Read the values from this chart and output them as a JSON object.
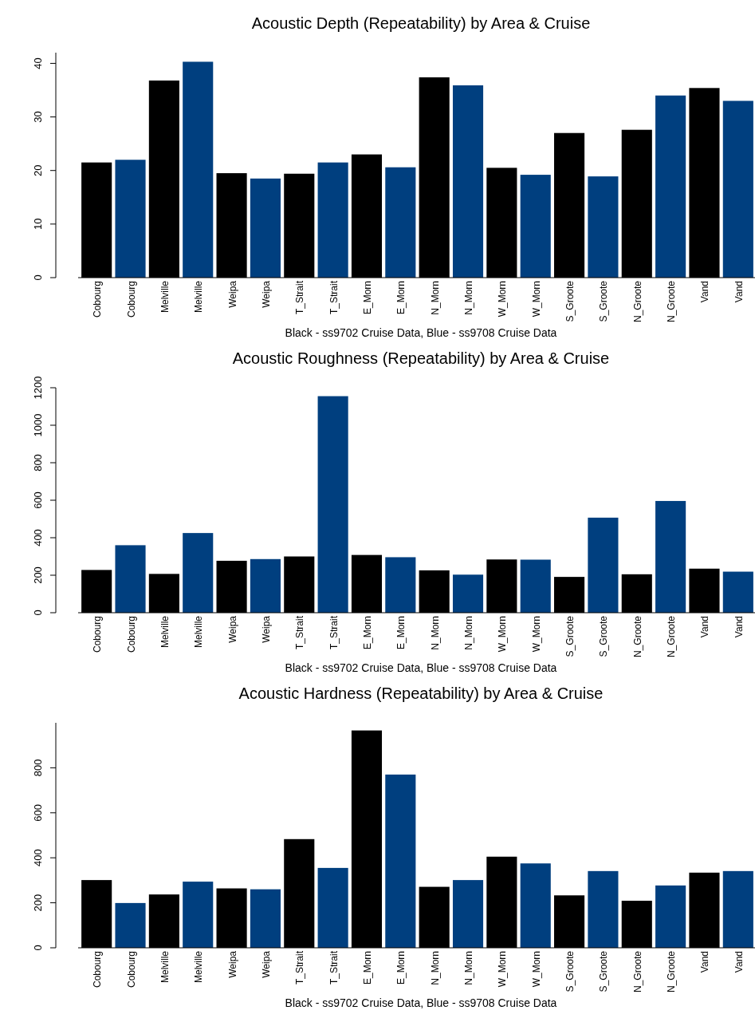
{
  "chart_data": [
    {
      "type": "bar",
      "title": "Acoustic Depth (Repeatability) by Area & Cruise",
      "xlabel": "Black - ss9702 Cruise Data, Blue - ss9708 Cruise Data",
      "categories": [
        "Cobourg",
        "Cobourg",
        "Melville",
        "Melville",
        "Weipa",
        "Weipa",
        "T_Strait",
        "T_Strait",
        "E_Morn",
        "E_Morn",
        "N_Morn",
        "N_Morn",
        "W_Morn",
        "W_Morn",
        "S_Groote",
        "S_Groote",
        "N_Groote",
        "N_Groote",
        "Vand",
        "Vand"
      ],
      "values": [
        21.5,
        22,
        36.8,
        40.3,
        19.5,
        18.5,
        19.4,
        21.5,
        23,
        20.6,
        37.4,
        35.9,
        20.5,
        19.2,
        27,
        18.9,
        27.6,
        34,
        35.4,
        33
      ],
      "colors": [
        "#000000",
        "#003f7f",
        "#000000",
        "#003f7f",
        "#000000",
        "#003f7f",
        "#000000",
        "#003f7f",
        "#000000",
        "#003f7f",
        "#000000",
        "#003f7f",
        "#000000",
        "#003f7f",
        "#000000",
        "#003f7f",
        "#000000",
        "#003f7f",
        "#000000",
        "#003f7f"
      ],
      "ylim": [
        0,
        42
      ],
      "yticks": [
        0,
        10,
        20,
        30,
        40
      ]
    },
    {
      "type": "bar",
      "title": "Acoustic Roughness (Repeatability) by Area & Cruise",
      "xlabel": "Black - ss9702 Cruise Data, Blue - ss9708 Cruise Data",
      "categories": [
        "Cobourg",
        "Cobourg",
        "Melville",
        "Melville",
        "Weipa",
        "Weipa",
        "T_Strait",
        "T_Strait",
        "E_Morn",
        "E_Morn",
        "N_Morn",
        "N_Morn",
        "W_Morn",
        "W_Morn",
        "S_Groote",
        "S_Groote",
        "N_Groote",
        "N_Groote",
        "Vand",
        "Vand"
      ],
      "values": [
        228,
        360,
        207,
        425,
        277,
        286,
        300,
        1155,
        308,
        296,
        226,
        203,
        284,
        283,
        191,
        507,
        205,
        596,
        235,
        219
      ],
      "colors": [
        "#000000",
        "#003f7f",
        "#000000",
        "#003f7f",
        "#000000",
        "#003f7f",
        "#000000",
        "#003f7f",
        "#000000",
        "#003f7f",
        "#000000",
        "#003f7f",
        "#000000",
        "#003f7f",
        "#000000",
        "#003f7f",
        "#000000",
        "#003f7f",
        "#000000",
        "#003f7f"
      ],
      "ylim": [
        0,
        1200
      ],
      "yticks": [
        0,
        200,
        400,
        600,
        800,
        1000,
        1200
      ]
    },
    {
      "type": "bar",
      "title": "Acoustic Hardness (Repeatability) by Area & Cruise",
      "xlabel": "Black - ss9702 Cruise Data, Blue - ss9708 Cruise Data",
      "categories": [
        "Cobourg",
        "Cobourg",
        "Melville",
        "Melville",
        "Weipa",
        "Weipa",
        "T_Strait",
        "T_Strait",
        "E_Morn",
        "E_Morn",
        "N_Morn",
        "N_Morn",
        "W_Morn",
        "W_Morn",
        "S_Groote",
        "S_Groote",
        "N_Groote",
        "N_Groote",
        "Vand",
        "Vand"
      ],
      "values": [
        301,
        199,
        237,
        294,
        264,
        260,
        483,
        355,
        966,
        770,
        271,
        301,
        405,
        375,
        233,
        341,
        209,
        277,
        334,
        341
      ],
      "colors": [
        "#000000",
        "#003f7f",
        "#000000",
        "#003f7f",
        "#000000",
        "#003f7f",
        "#000000",
        "#003f7f",
        "#000000",
        "#003f7f",
        "#000000",
        "#003f7f",
        "#000000",
        "#003f7f",
        "#000000",
        "#003f7f",
        "#000000",
        "#003f7f",
        "#000000",
        "#003f7f"
      ],
      "ylim": [
        0,
        1000
      ],
      "yticks": [
        0,
        200,
        400,
        600,
        800
      ]
    }
  ]
}
